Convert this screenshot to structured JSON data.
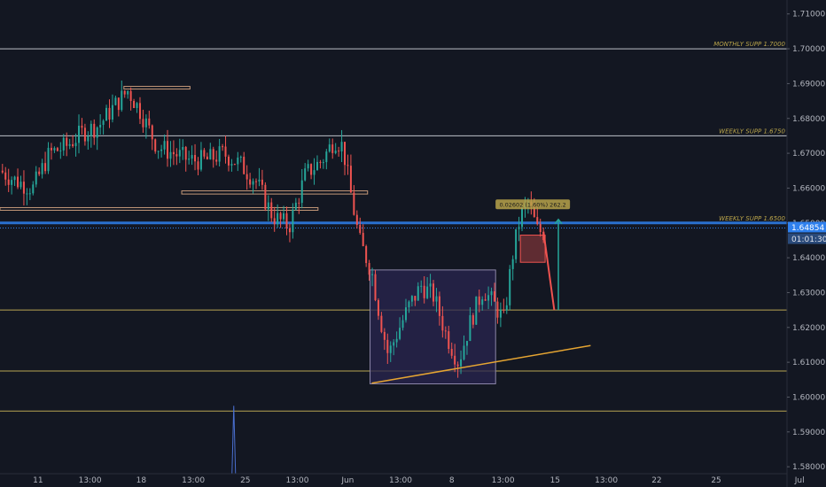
{
  "chart_data": {
    "type": "candlestick",
    "colors": {
      "background": "#131722",
      "up": "#26a69a",
      "down": "#ef5350",
      "level_white": "#d1d4dc",
      "level_yellow": "#c9b458",
      "level_blue": "#2f80ed",
      "trend": "#e6a532",
      "zone_fill": "#2a2550",
      "zone_border": "#8c86a8",
      "projection_down": "#ef5350",
      "projection_up": "#26a69a",
      "label_bg": "#b8a34a",
      "price_tag": "#2f80ed",
      "axis_text": "#b2b5be"
    },
    "y_axis": {
      "min": 1.578,
      "max": 1.714,
      "ticks": [
        "1.71000",
        "1.70000",
        "1.69000",
        "1.68000",
        "1.67000",
        "1.66000",
        "1.65000",
        "1.64000",
        "1.63000",
        "1.62000",
        "1.61000",
        "1.60000",
        "1.59000",
        "1.58000"
      ],
      "tick_values": [
        1.71,
        1.7,
        1.69,
        1.68,
        1.67,
        1.66,
        1.65,
        1.64,
        1.63,
        1.62,
        1.61,
        1.6,
        1.59,
        1.58
      ]
    },
    "x_axis": {
      "range": [
        0,
        100
      ],
      "ticks": [
        {
          "label": "11",
          "x": 4.6
        },
        {
          "label": "13:00",
          "x": 10.9
        },
        {
          "label": "18",
          "x": 17.1
        },
        {
          "label": "13:00",
          "x": 23.4
        },
        {
          "label": "25",
          "x": 29.7
        },
        {
          "label": "13:00",
          "x": 36.0
        },
        {
          "label": "Jun",
          "x": 42.1
        },
        {
          "label": "13:00",
          "x": 48.5
        },
        {
          "label": "8",
          "x": 54.7
        },
        {
          "label": "13:00",
          "x": 60.9
        },
        {
          "label": "15",
          "x": 67.2
        },
        {
          "label": "13:00",
          "x": 73.4
        },
        {
          "label": "22",
          "x": 79.5
        },
        {
          "label": "25",
          "x": 86.7
        },
        {
          "label": "Jul",
          "x": 96.8
        }
      ]
    },
    "candles_hint": "OHLC path waypoints [x, close]",
    "price_path": [
      [
        0,
        1.665
      ],
      [
        2,
        1.662
      ],
      [
        4,
        1.66
      ],
      [
        6,
        1.67
      ],
      [
        8,
        1.672
      ],
      [
        10,
        1.676
      ],
      [
        12,
        1.678
      ],
      [
        14,
        1.684
      ],
      [
        15.5,
        1.688
      ],
      [
        17,
        1.682
      ],
      [
        19,
        1.672
      ],
      [
        21,
        1.67
      ],
      [
        23,
        1.668
      ],
      [
        25,
        1.668
      ],
      [
        27,
        1.67
      ],
      [
        29,
        1.667
      ],
      [
        31,
        1.662
      ],
      [
        33,
        1.652
      ],
      [
        35,
        1.649
      ],
      [
        37,
        1.664
      ],
      [
        39,
        1.668
      ],
      [
        40.5,
        1.674
      ],
      [
        41.5,
        1.672
      ],
      [
        42.5,
        1.658
      ],
      [
        43.5,
        1.645
      ],
      [
        45,
        1.636
      ],
      [
        46,
        1.623
      ],
      [
        47,
        1.612
      ],
      [
        48,
        1.618
      ],
      [
        49.5,
        1.626
      ],
      [
        51,
        1.632
      ],
      [
        52.5,
        1.629
      ],
      [
        54,
        1.618
      ],
      [
        55.5,
        1.61
      ],
      [
        57,
        1.622
      ],
      [
        58.5,
        1.631
      ],
      [
        60,
        1.626
      ],
      [
        61,
        1.622
      ],
      [
        62,
        1.64
      ],
      [
        63,
        1.652
      ],
      [
        64,
        1.656
      ],
      [
        65,
        1.648
      ],
      [
        66,
        1.647
      ]
    ],
    "levels": [
      {
        "label": "MONTHLY SUPP 1.7000",
        "value": 1.7,
        "style": "white",
        "show_label": true
      },
      {
        "label": "WEEKLY SUPP 1.6750",
        "value": 1.675,
        "style": "white",
        "show_label": true
      },
      {
        "label": "WEEKLY SUPP 1.6500",
        "value": 1.65,
        "style": "blue",
        "show_label": true
      },
      {
        "label": "",
        "value": 1.625,
        "style": "yellow",
        "show_label": false
      },
      {
        "label": "",
        "value": 1.6075,
        "style": "yellow",
        "show_label": false
      },
      {
        "label": "",
        "value": 1.596,
        "style": "yellow",
        "show_label": false
      }
    ],
    "dotted_price_line": 1.64854,
    "resistance_boxes": [
      {
        "x0": 15.0,
        "x1": 23.0,
        "y0": 1.6885,
        "y1": 1.6892
      },
      {
        "x0": 22.0,
        "x1": 44.5,
        "y0": 1.6583,
        "y1": 1.6592
      },
      {
        "x0": 0.0,
        "x1": 38.5,
        "y0": 1.6537,
        "y1": 1.6544
      }
    ],
    "range_box": {
      "x0": 44.8,
      "x1": 60.0,
      "y0": 1.6038,
      "y1": 1.6365
    },
    "trend_line": {
      "x0": 45.0,
      "y0": 1.604,
      "x1": 71.5,
      "y1": 1.6148
    },
    "projection": {
      "down_box": {
        "x0": 63.0,
        "x1": 66.0,
        "y0": 1.6387,
        "y1": 1.6465
      },
      "down_line": {
        "x0": 65.8,
        "y0": 1.6475,
        "x1": 67.1,
        "y1": 1.625
      },
      "up_arrow": {
        "x": 67.6,
        "y0": 1.625,
        "y1": 1.651
      },
      "label": "0.02602 (1.60%) 262.2",
      "label_anchor": {
        "x": 64.5,
        "y": 1.6565
      }
    },
    "volume_spike": {
      "x": 28.3,
      "value": 1.596,
      "top": 1.5975
    },
    "price_tag": "1.64854",
    "countdown": "01:01:30"
  }
}
